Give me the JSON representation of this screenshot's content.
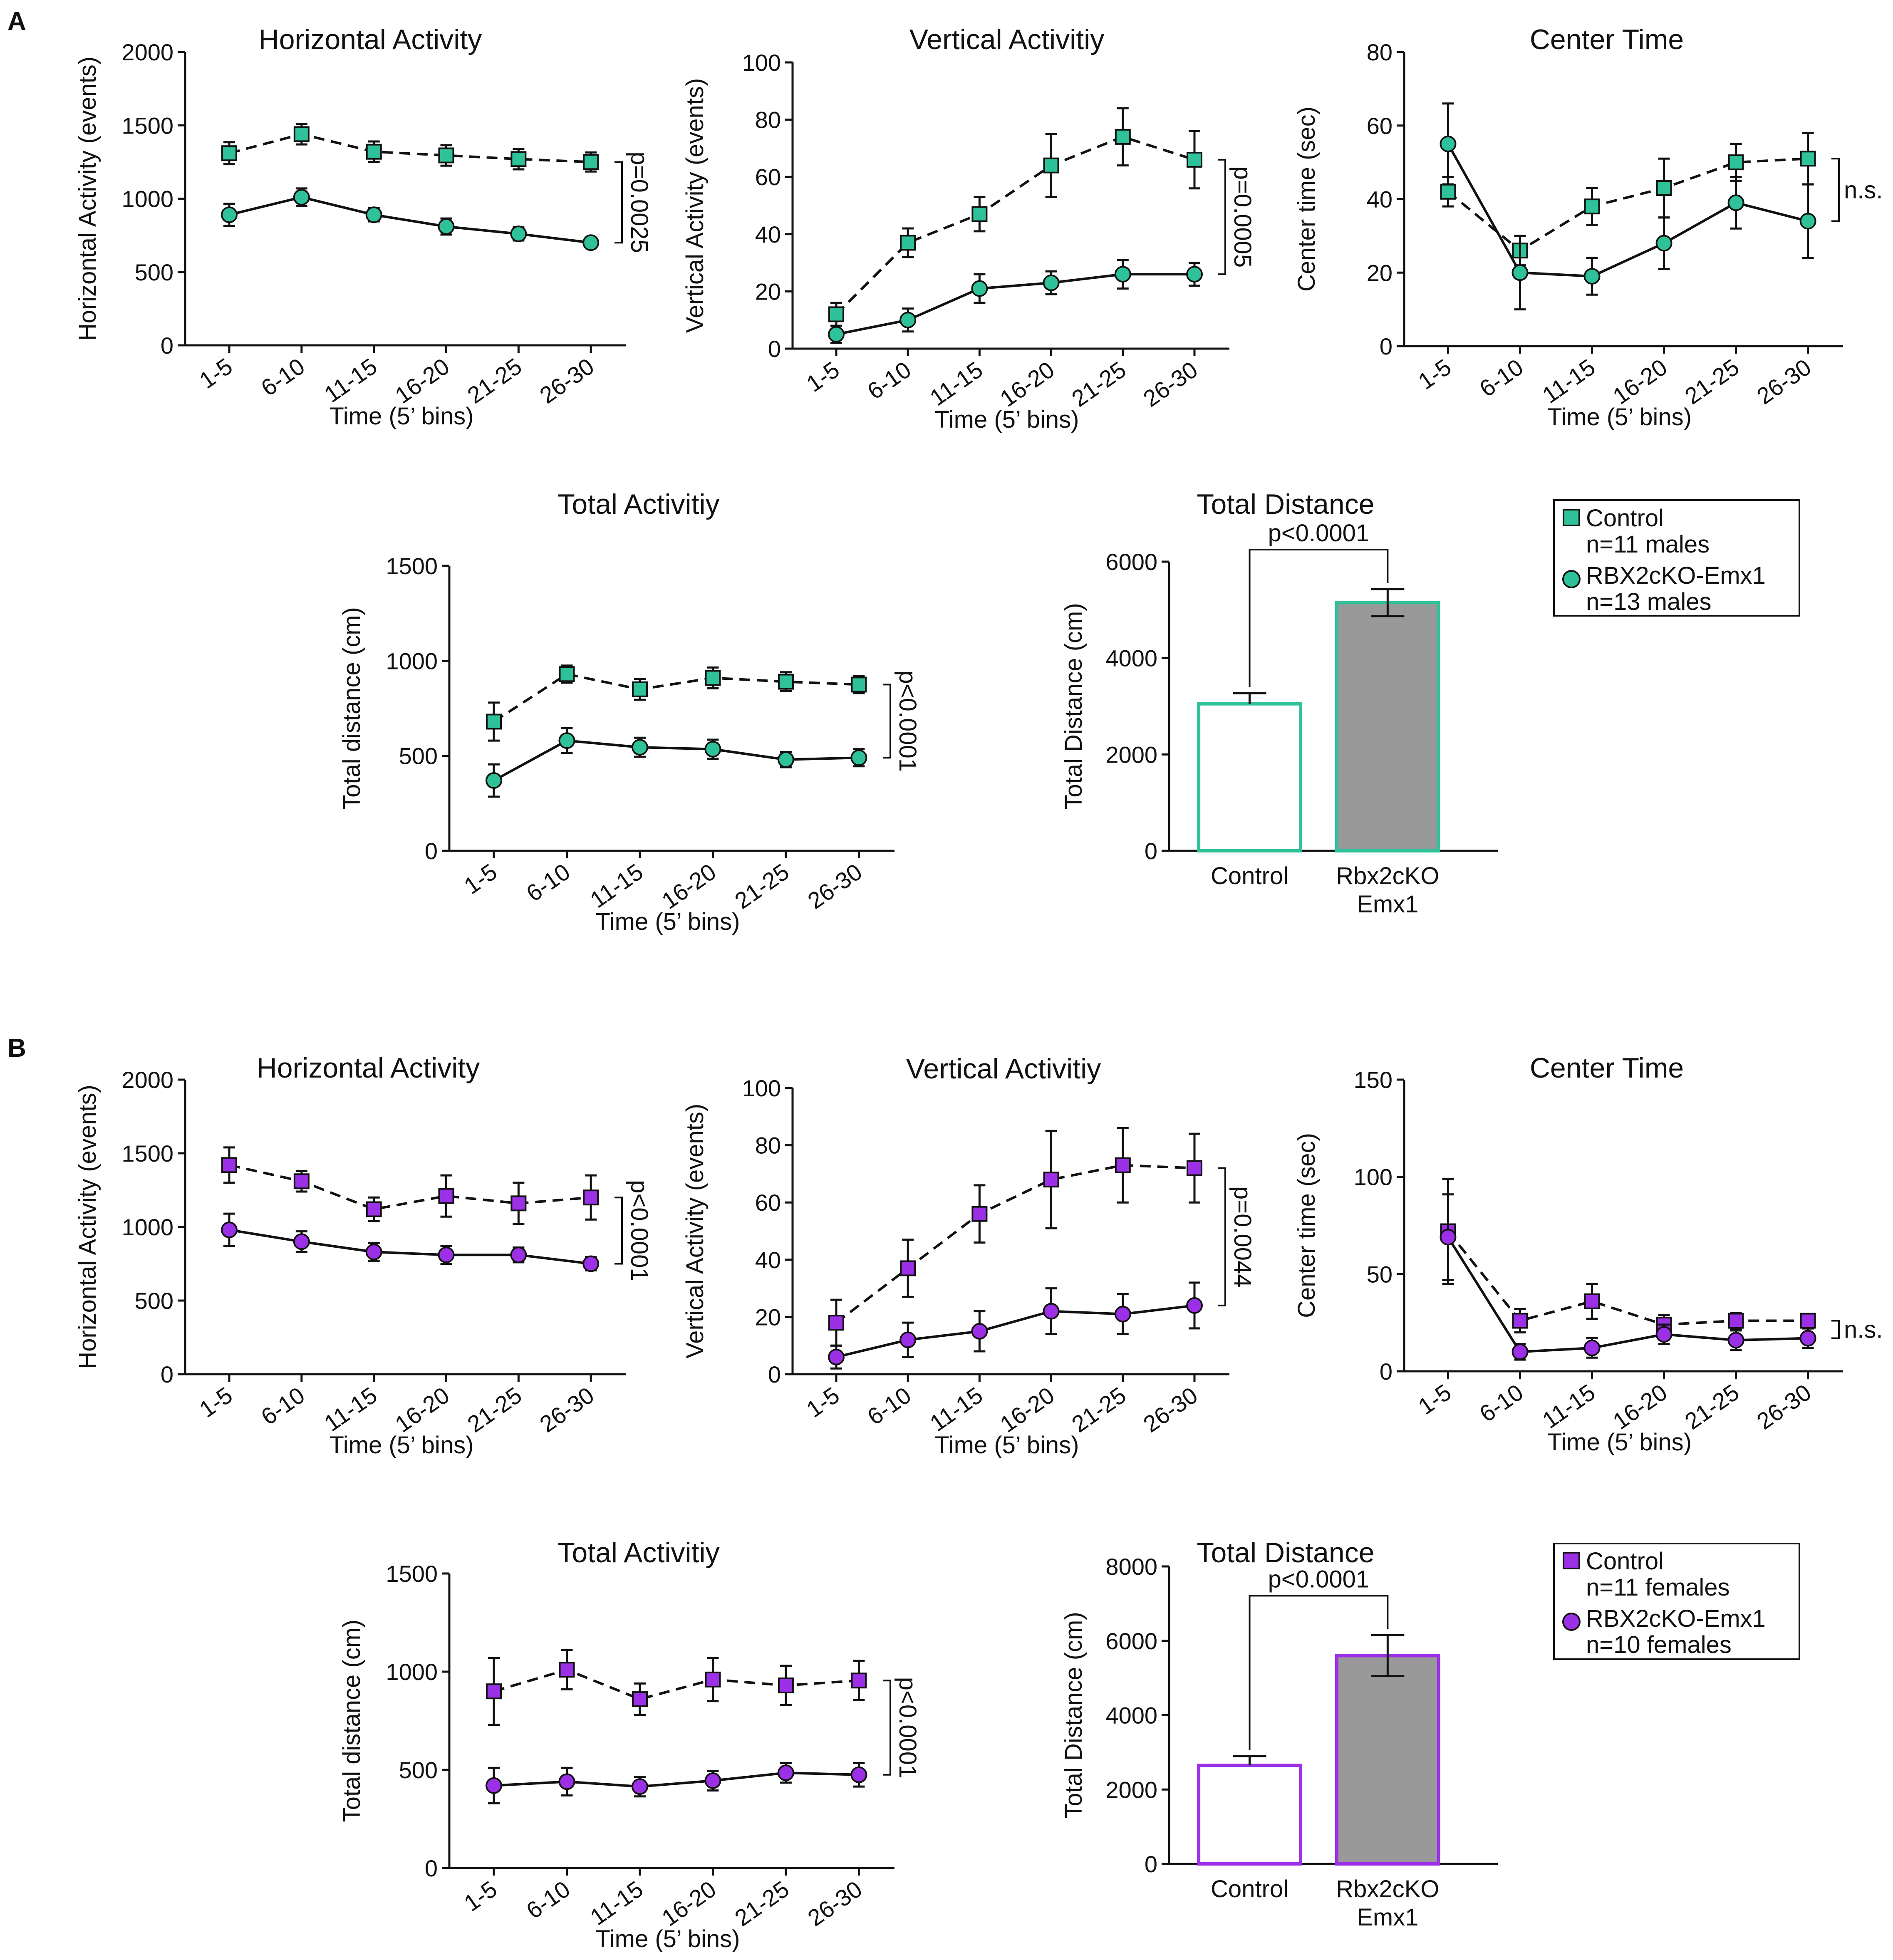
{
  "colors": {
    "control_A": "#2fc29a",
    "control_B": "#9b30e6",
    "bar_ko": "#999999",
    "ink": "#111111"
  },
  "panels": [
    {
      "letter": "A",
      "legend": {
        "control_label": "Control",
        "control_n": "n=11 males",
        "ko_label": "RBX2cKO-Emx1",
        "ko_n": "n=13 males"
      }
    },
    {
      "letter": "B",
      "legend": {
        "control_label": "Control",
        "control_n": "n=11 females",
        "ko_label": "RBX2cKO-Emx1",
        "ko_n": "n=10 females"
      }
    }
  ],
  "chart_data": [
    {
      "panel": "A",
      "type": "line",
      "title": "Horizontal Activity",
      "xlabel": "Time (5’ bins)",
      "ylabel": "Horizontal Activity (events)",
      "categories": [
        "1-5",
        "6-10",
        "11-15",
        "16-20",
        "21-25",
        "26-30"
      ],
      "ylim": [
        0,
        2000
      ],
      "yticks": [
        0,
        500,
        1000,
        1500,
        2000
      ],
      "series": [
        {
          "name": "Control",
          "marker": "square",
          "dash": true,
          "values": [
            1310,
            1440,
            1320,
            1295,
            1270,
            1250
          ],
          "err": [
            75,
            70,
            70,
            70,
            70,
            65
          ]
        },
        {
          "name": "RBX2cKO-Emx1",
          "marker": "circle",
          "dash": false,
          "values": [
            890,
            1010,
            890,
            810,
            760,
            700
          ],
          "err": [
            75,
            60,
            45,
            55,
            45,
            30
          ]
        }
      ],
      "pvalue": "p=0.0025"
    },
    {
      "panel": "A",
      "type": "line",
      "title": "Vertical Activitiy",
      "xlabel": "Time (5’ bins)",
      "ylabel": "Vertical Activity (events)",
      "categories": [
        "1-5",
        "6-10",
        "11-15",
        "16-20",
        "21-25",
        "26-30"
      ],
      "ylim": [
        0,
        100
      ],
      "yticks": [
        0,
        20,
        40,
        60,
        80,
        100
      ],
      "series": [
        {
          "name": "Control",
          "marker": "square",
          "dash": true,
          "values": [
            12,
            37,
            47,
            64,
            74,
            66
          ],
          "err": [
            4,
            5,
            6,
            11,
            10,
            10
          ]
        },
        {
          "name": "RBX2cKO-Emx1",
          "marker": "circle",
          "dash": false,
          "values": [
            5,
            10,
            21,
            23,
            26,
            26
          ],
          "err": [
            3,
            4,
            5,
            4,
            5,
            4
          ]
        }
      ],
      "pvalue": "p=0.0005"
    },
    {
      "panel": "A",
      "type": "line",
      "title": "Center Time",
      "xlabel": "Time (5’ bins)",
      "ylabel": "Center time (sec)",
      "categories": [
        "1-5",
        "6-10",
        "11-15",
        "16-20",
        "21-25",
        "26-30"
      ],
      "ylim": [
        0,
        80
      ],
      "yticks": [
        0,
        20,
        40,
        60,
        80
      ],
      "series": [
        {
          "name": "Control",
          "marker": "square",
          "dash": true,
          "values": [
            42,
            26,
            38,
            43,
            50,
            51
          ],
          "err": [
            4,
            4,
            5,
            8,
            5,
            7
          ]
        },
        {
          "name": "RBX2cKO-Emx1",
          "marker": "circle",
          "dash": false,
          "values": [
            55,
            20,
            19,
            28,
            39,
            34
          ],
          "err": [
            11,
            10,
            5,
            7,
            7,
            10
          ]
        }
      ],
      "pvalue": "n.s."
    },
    {
      "panel": "A",
      "type": "line",
      "title": "Total Activitiy",
      "xlabel": "Time (5’ bins)",
      "ylabel": "Total distance (cm)",
      "categories": [
        "1-5",
        "6-10",
        "11-15",
        "16-20",
        "21-25",
        "26-30"
      ],
      "ylim": [
        0,
        1500
      ],
      "yticks": [
        0,
        500,
        1000,
        1500
      ],
      "series": [
        {
          "name": "Control",
          "marker": "square",
          "dash": true,
          "values": [
            680,
            930,
            850,
            910,
            890,
            875
          ],
          "err": [
            100,
            45,
            55,
            55,
            50,
            45
          ]
        },
        {
          "name": "RBX2cKO-Emx1",
          "marker": "circle",
          "dash": false,
          "values": [
            370,
            580,
            545,
            535,
            480,
            490
          ],
          "err": [
            85,
            65,
            50,
            50,
            40,
            45
          ]
        }
      ],
      "pvalue": "p<0.0001"
    },
    {
      "panel": "A",
      "type": "bar",
      "title": "Total Distance",
      "xlabel": "",
      "ylabel": "Total Distance (cm)",
      "categories": [
        "Control",
        "Rbx2cKO\nEmx1"
      ],
      "ylim": [
        0,
        6000
      ],
      "yticks": [
        0,
        2000,
        4000,
        6000
      ],
      "values": [
        3050,
        5150
      ],
      "err": [
        220,
        280
      ],
      "pvalue": "p<0.0001"
    },
    {
      "panel": "B",
      "type": "line",
      "title": "Horizontal Activity",
      "xlabel": "Time (5’ bins)",
      "ylabel": "Horizontal Activity (events)",
      "categories": [
        "1-5",
        "6-10",
        "11-15",
        "16-20",
        "21-25",
        "26-30"
      ],
      "ylim": [
        0,
        2000
      ],
      "yticks": [
        0,
        500,
        1000,
        1500,
        2000
      ],
      "series": [
        {
          "name": "Control",
          "marker": "square",
          "dash": true,
          "values": [
            1420,
            1310,
            1120,
            1210,
            1160,
            1200
          ],
          "err": [
            120,
            70,
            80,
            140,
            140,
            150
          ]
        },
        {
          "name": "RBX2cKO-Emx1",
          "marker": "circle",
          "dash": false,
          "values": [
            980,
            900,
            830,
            810,
            810,
            750
          ],
          "err": [
            110,
            70,
            60,
            60,
            50,
            45
          ]
        }
      ],
      "pvalue": "p<0.0001"
    },
    {
      "panel": "B",
      "type": "line",
      "title": "Vertical Activitiy",
      "xlabel": "Time (5’ bins)",
      "ylabel": "Vertical Activity (events)",
      "categories": [
        "1-5",
        "6-10",
        "11-15",
        "16-20",
        "21-25",
        "26-30"
      ],
      "ylim": [
        0,
        100
      ],
      "yticks": [
        0,
        20,
        40,
        60,
        80,
        100
      ],
      "series": [
        {
          "name": "Control",
          "marker": "square",
          "dash": true,
          "values": [
            18,
            37,
            56,
            68,
            73,
            72
          ],
          "err": [
            8,
            10,
            10,
            17,
            13,
            12
          ]
        },
        {
          "name": "RBX2cKO-Emx1",
          "marker": "circle",
          "dash": false,
          "values": [
            6,
            12,
            15,
            22,
            21,
            24
          ],
          "err": [
            4,
            6,
            7,
            8,
            7,
            8
          ]
        }
      ],
      "pvalue": "p=0.0044"
    },
    {
      "panel": "B",
      "type": "line",
      "title": "Center Time",
      "xlabel": "Time (5’ bins)",
      "ylabel": "Center time (sec)",
      "categories": [
        "1-5",
        "6-10",
        "11-15",
        "16-20",
        "21-25",
        "26-30"
      ],
      "ylim": [
        0,
        150
      ],
      "yticks": [
        0,
        50,
        100,
        150
      ],
      "series": [
        {
          "name": "Control",
          "marker": "square",
          "dash": true,
          "values": [
            72,
            26,
            36,
            24,
            26,
            26
          ],
          "err": [
            27,
            6,
            9,
            5,
            4,
            3
          ]
        },
        {
          "name": "RBX2cKO-Emx1",
          "marker": "circle",
          "dash": false,
          "values": [
            69,
            10,
            12,
            19,
            16,
            17
          ],
          "err": [
            22,
            4,
            5,
            5,
            5,
            5
          ]
        }
      ],
      "pvalue": "n.s."
    },
    {
      "panel": "B",
      "type": "line",
      "title": "Total Activitiy",
      "xlabel": "Time (5’ bins)",
      "ylabel": "Total distance (cm)",
      "categories": [
        "1-5",
        "6-10",
        "11-15",
        "16-20",
        "21-25",
        "26-30"
      ],
      "ylim": [
        0,
        1500
      ],
      "yticks": [
        0,
        500,
        1000,
        1500
      ],
      "series": [
        {
          "name": "Control",
          "marker": "square",
          "dash": true,
          "values": [
            900,
            1010,
            860,
            960,
            930,
            955
          ],
          "err": [
            170,
            100,
            80,
            110,
            100,
            100
          ]
        },
        {
          "name": "RBX2cKO-Emx1",
          "marker": "circle",
          "dash": false,
          "values": [
            420,
            440,
            415,
            445,
            485,
            475
          ],
          "err": [
            90,
            70,
            50,
            50,
            50,
            60
          ]
        }
      ],
      "pvalue": "p<0.0001"
    },
    {
      "panel": "B",
      "type": "bar",
      "title": "Total Distance",
      "xlabel": "",
      "ylabel": "Total Distance (cm)",
      "categories": [
        "Control",
        "Rbx2cKO\nEmx1"
      ],
      "ylim": [
        0,
        8000
      ],
      "yticks": [
        0,
        2000,
        4000,
        6000,
        8000
      ],
      "values": [
        2650,
        5600
      ],
      "err": [
        250,
        550
      ],
      "pvalue": "p<0.0001"
    }
  ]
}
